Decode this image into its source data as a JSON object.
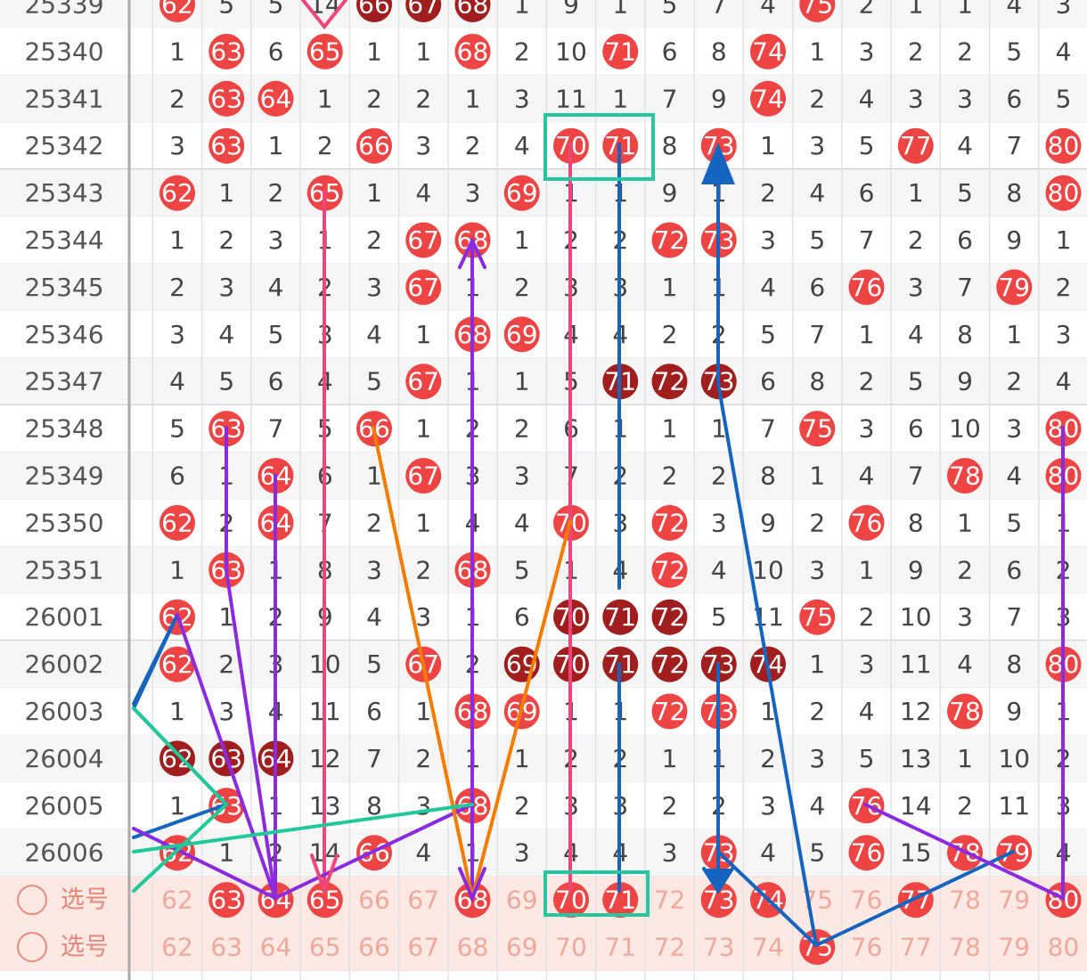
{
  "trend": {
    "rows": [
      {
        "issue": "25339",
        "cells": [
          62,
          5,
          5,
          14,
          66,
          67,
          68,
          1,
          9,
          1,
          5,
          7,
          4,
          75,
          2,
          1,
          1,
          4,
          3
        ],
        "marks": "r...ddd......r....."
      },
      {
        "issue": "25340",
        "cells": [
          1,
          63,
          6,
          65,
          1,
          1,
          68,
          2,
          10,
          71,
          6,
          8,
          74,
          1,
          3,
          2,
          2,
          5,
          4
        ],
        "marks": ".r.r..r..r..r......"
      },
      {
        "issue": "25341",
        "cells": [
          2,
          63,
          64,
          1,
          2,
          2,
          1,
          3,
          11,
          1,
          7,
          9,
          74,
          2,
          4,
          3,
          3,
          6,
          5
        ],
        "marks": ".rr.........r......"
      },
      {
        "issue": "25342",
        "cells": [
          3,
          63,
          1,
          2,
          66,
          3,
          2,
          4,
          70,
          71,
          8,
          73,
          1,
          3,
          5,
          77,
          4,
          7,
          80
        ],
        "marks": ".r..r...rr.r...r..r"
      },
      {
        "issue": "25343",
        "cells": [
          62,
          1,
          2,
          65,
          1,
          4,
          3,
          69,
          1,
          1,
          9,
          1,
          2,
          4,
          6,
          1,
          5,
          8,
          80
        ],
        "marks": "r..r...r..........r"
      },
      {
        "issue": "25344",
        "cells": [
          1,
          2,
          3,
          1,
          2,
          67,
          68,
          1,
          2,
          2,
          72,
          73,
          3,
          5,
          7,
          2,
          6,
          9,
          1
        ],
        "marks": ".....rr...rr......."
      },
      {
        "issue": "25345",
        "cells": [
          2,
          3,
          4,
          2,
          3,
          67,
          1,
          2,
          3,
          3,
          1,
          1,
          4,
          6,
          76,
          3,
          7,
          79,
          2
        ],
        "marks": ".....r........r..r."
      },
      {
        "issue": "25346",
        "cells": [
          3,
          4,
          5,
          3,
          4,
          1,
          68,
          69,
          4,
          4,
          2,
          2,
          5,
          7,
          1,
          4,
          8,
          1,
          3
        ],
        "marks": "......rr..........."
      },
      {
        "issue": "25347",
        "cells": [
          4,
          5,
          6,
          4,
          5,
          67,
          1,
          1,
          5,
          71,
          72,
          73,
          6,
          8,
          2,
          5,
          9,
          2,
          4
        ],
        "marks": ".....r...ddd......."
      },
      {
        "issue": "25348",
        "cells": [
          5,
          63,
          7,
          5,
          66,
          1,
          2,
          2,
          6,
          1,
          1,
          1,
          7,
          75,
          3,
          6,
          10,
          3,
          80
        ],
        "marks": ".r..r........r....r"
      },
      {
        "issue": "25349",
        "cells": [
          6,
          1,
          64,
          6,
          1,
          67,
          3,
          3,
          7,
          2,
          2,
          2,
          8,
          1,
          4,
          7,
          78,
          4,
          80
        ],
        "marks": "..r..r..........r.r"
      },
      {
        "issue": "25350",
        "cells": [
          62,
          2,
          64,
          7,
          2,
          1,
          4,
          4,
          70,
          3,
          72,
          3,
          9,
          2,
          76,
          8,
          1,
          5,
          1
        ],
        "marks": "r.r.....r.r...r...."
      },
      {
        "issue": "25351",
        "cells": [
          1,
          63,
          1,
          8,
          3,
          2,
          68,
          5,
          1,
          4,
          72,
          4,
          10,
          3,
          1,
          9,
          2,
          6,
          2
        ],
        "marks": ".r....r...r........"
      },
      {
        "issue": "26001",
        "cells": [
          62,
          1,
          2,
          9,
          4,
          3,
          1,
          6,
          70,
          71,
          72,
          5,
          11,
          75,
          2,
          10,
          3,
          7,
          3
        ],
        "marks": "r.......ddd..r....."
      },
      {
        "issue": "26002",
        "cells": [
          62,
          2,
          3,
          10,
          5,
          67,
          2,
          69,
          70,
          71,
          72,
          73,
          74,
          1,
          3,
          11,
          4,
          8,
          80
        ],
        "marks": "r....r.dddddd.....r"
      },
      {
        "issue": "26003",
        "cells": [
          1,
          3,
          4,
          11,
          6,
          1,
          68,
          69,
          1,
          1,
          72,
          73,
          1,
          2,
          4,
          12,
          78,
          9,
          1
        ],
        "marks": "......rr..rr....r.."
      },
      {
        "issue": "26004",
        "cells": [
          62,
          63,
          64,
          12,
          7,
          2,
          1,
          1,
          2,
          2,
          1,
          1,
          2,
          3,
          5,
          13,
          1,
          10,
          2
        ],
        "marks": "ddd................"
      },
      {
        "issue": "26005",
        "cells": [
          1,
          63,
          1,
          13,
          8,
          3,
          68,
          2,
          3,
          3,
          2,
          2,
          3,
          4,
          76,
          14,
          2,
          11,
          3
        ],
        "marks": ".r....r.......r...."
      },
      {
        "issue": "26006",
        "cells": [
          62,
          1,
          2,
          14,
          66,
          4,
          1,
          3,
          4,
          4,
          3,
          73,
          4,
          5,
          76,
          15,
          78,
          79,
          4
        ],
        "marks": "r...r......r..r.rr."
      }
    ],
    "select_rows": [
      {
        "label": "选号",
        "cells": [
          62,
          63,
          64,
          65,
          66,
          67,
          68,
          69,
          70,
          71,
          72,
          73,
          74,
          75,
          76,
          77,
          78,
          79,
          80
        ],
        "marks": ".rrr..r.rr.rr..r..r"
      },
      {
        "label": "选号",
        "cells": [
          62,
          63,
          64,
          65,
          66,
          67,
          68,
          69,
          70,
          71,
          72,
          73,
          74,
          75,
          76,
          77,
          78,
          79,
          80
        ],
        "marks": ".............r....."
      }
    ]
  }
}
